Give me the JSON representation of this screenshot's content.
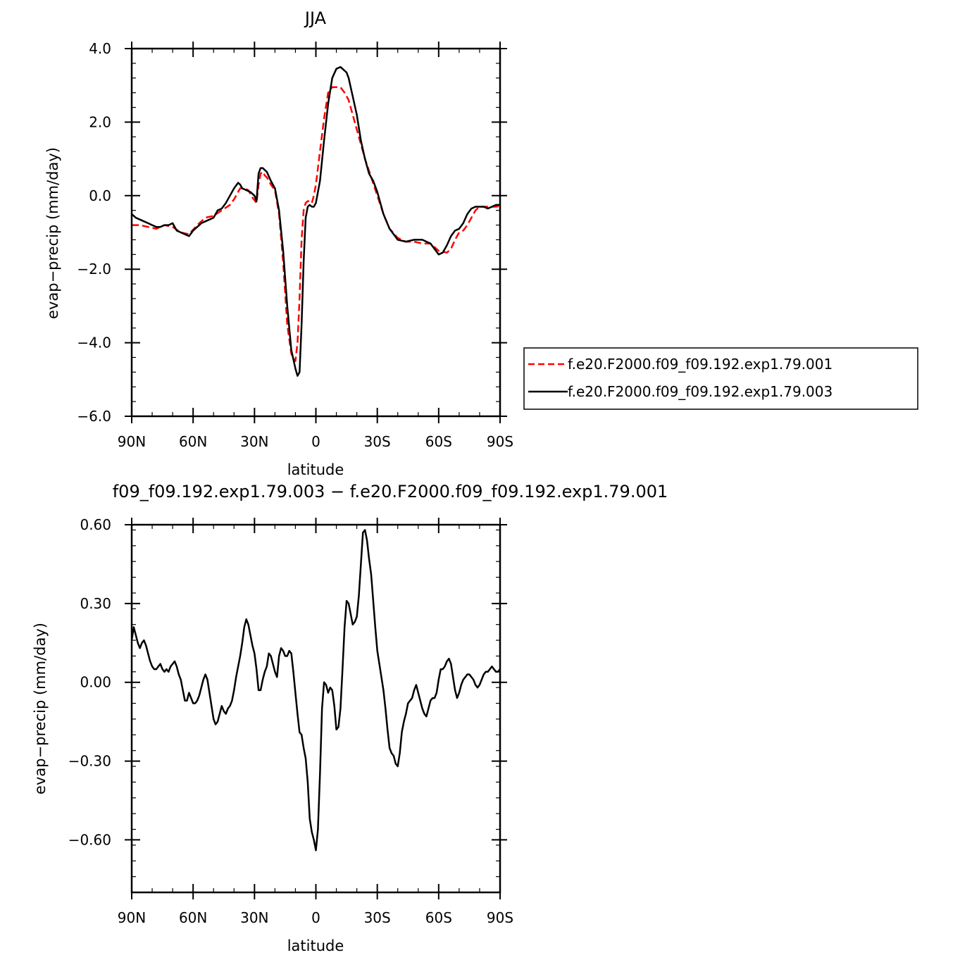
{
  "chart_data": [
    {
      "type": "line",
      "title": "JJA",
      "xlabel": "latitude",
      "ylabel": "evap−precip (mm/day)",
      "xlim": [
        90,
        -90
      ],
      "ylim": [
        -6,
        4
      ],
      "xticks": [
        90,
        60,
        30,
        0,
        -30,
        -60,
        -90
      ],
      "xtick_labels": [
        "90N",
        "60N",
        "30N",
        "0",
        "30S",
        "60S",
        "90S"
      ],
      "yticks": [
        -6,
        -4,
        -2,
        0,
        2,
        4
      ],
      "ytick_labels": [
        "−6.0",
        "−4.0",
        "−2.0",
        "0.0",
        "2.0",
        "4.0"
      ],
      "grid": false,
      "legend_position": "right",
      "series": [
        {
          "name": "f.e20.F2000.f09_f09.192.exp1.79.001",
          "color": "#ff0000",
          "style": "dashed",
          "x": [
            90,
            86,
            82,
            78,
            74,
            70,
            66,
            62,
            58,
            54,
            50,
            46,
            42,
            40,
            37,
            35,
            33,
            31,
            29,
            28,
            27,
            26,
            25,
            24,
            22,
            20,
            18,
            16,
            14,
            12,
            10,
            9,
            8,
            7,
            6,
            5,
            4,
            3,
            2,
            1,
            0,
            -2,
            -4,
            -6,
            -8,
            -10,
            -12,
            -14,
            -16,
            -18,
            -20,
            -22,
            -24,
            -27,
            -30,
            -33,
            -36,
            -40,
            -44,
            -48,
            -52,
            -56,
            -60,
            -64,
            -66,
            -68,
            -70,
            -72,
            -74,
            -76,
            -78,
            -80,
            -84,
            -88,
            -90
          ],
          "values": [
            -0.8,
            -0.8,
            -0.85,
            -0.9,
            -0.8,
            -0.85,
            -1.0,
            -1.05,
            -0.8,
            -0.6,
            -0.55,
            -0.4,
            -0.25,
            -0.1,
            0.2,
            0.2,
            0.15,
            -0.05,
            -0.2,
            0.3,
            0.6,
            0.65,
            0.55,
            0.5,
            0.3,
            0.15,
            -0.5,
            -1.8,
            -3.5,
            -4.3,
            -4.5,
            -4.0,
            -2.8,
            -1.2,
            -0.4,
            -0.2,
            -0.15,
            -0.15,
            -0.2,
            0.0,
            0.3,
            1.2,
            2.1,
            2.8,
            2.95,
            2.95,
            2.95,
            2.8,
            2.6,
            2.2,
            1.8,
            1.4,
            1.0,
            0.5,
            0.0,
            -0.5,
            -0.9,
            -1.15,
            -1.25,
            -1.25,
            -1.3,
            -1.3,
            -1.5,
            -1.55,
            -1.45,
            -1.2,
            -1.0,
            -0.95,
            -0.8,
            -0.6,
            -0.4,
            -0.3,
            -0.3,
            -0.3,
            -0.28
          ]
        },
        {
          "name": "f.e20.F2000.f09_f09.192.exp1.79.003",
          "color": "#000000",
          "style": "solid",
          "x": [
            90,
            88,
            86,
            84,
            82,
            80,
            78,
            76,
            74,
            72,
            70,
            68,
            66,
            64,
            62,
            60,
            58,
            56,
            54,
            52,
            50,
            48,
            46,
            44,
            42,
            40,
            38,
            37,
            36,
            34,
            32,
            30,
            29,
            28,
            27,
            26,
            25,
            24,
            22,
            20,
            18,
            16,
            14,
            12,
            10,
            9,
            8,
            7,
            6,
            5,
            4,
            3,
            2,
            1,
            0,
            -2,
            -4,
            -6,
            -8,
            -10,
            -12,
            -13,
            -14,
            -15,
            -16,
            -18,
            -20,
            -22,
            -24,
            -26,
            -28,
            -30,
            -33,
            -36,
            -40,
            -44,
            -48,
            -52,
            -56,
            -60,
            -62,
            -64,
            -66,
            -68,
            -70,
            -72,
            -74,
            -76,
            -78,
            -80,
            -82,
            -84,
            -86,
            -88,
            -90
          ],
          "values": [
            -0.5,
            -0.6,
            -0.65,
            -0.7,
            -0.75,
            -0.8,
            -0.85,
            -0.85,
            -0.8,
            -0.8,
            -0.75,
            -0.95,
            -1.0,
            -1.05,
            -1.1,
            -0.95,
            -0.85,
            -0.75,
            -0.7,
            -0.65,
            -0.6,
            -0.4,
            -0.35,
            -0.2,
            0.0,
            0.2,
            0.35,
            0.3,
            0.2,
            0.15,
            0.1,
            0.0,
            -0.15,
            0.6,
            0.75,
            0.75,
            0.7,
            0.65,
            0.4,
            0.2,
            -0.4,
            -1.5,
            -3.0,
            -4.2,
            -4.7,
            -4.9,
            -4.8,
            -3.5,
            -1.8,
            -0.6,
            -0.3,
            -0.25,
            -0.3,
            -0.3,
            -0.2,
            0.4,
            1.5,
            2.5,
            3.2,
            3.45,
            3.5,
            3.45,
            3.4,
            3.35,
            3.2,
            2.7,
            2.2,
            1.5,
            1.0,
            0.6,
            0.4,
            0.1,
            -0.5,
            -0.9,
            -1.2,
            -1.25,
            -1.2,
            -1.2,
            -1.3,
            -1.6,
            -1.55,
            -1.35,
            -1.1,
            -0.95,
            -0.9,
            -0.75,
            -0.5,
            -0.35,
            -0.3,
            -0.3,
            -0.3,
            -0.35,
            -0.3,
            -0.25,
            -0.25
          ]
        }
      ]
    },
    {
      "type": "line",
      "title": "f09_f09.192.exp1.79.003 − f.e20.F2000.f09_f09.192.exp1.79.001",
      "xlabel": "latitude",
      "ylabel": "evap−precip (mm/day)",
      "xlim": [
        90,
        -90
      ],
      "ylim": [
        -0.8,
        0.6
      ],
      "xticks": [
        90,
        60,
        30,
        0,
        -30,
        -60,
        -90
      ],
      "xtick_labels": [
        "90N",
        "60N",
        "30N",
        "0",
        "30S",
        "60S",
        "90S"
      ],
      "yticks": [
        -0.6,
        -0.3,
        0.0,
        0.3,
        0.6
      ],
      "ytick_labels": [
        "−0.60",
        "−0.30",
        "0.00",
        "0.30",
        "0.60"
      ],
      "grid": false,
      "series": [
        {
          "color": "#000000",
          "style": "solid",
          "x": [
            90,
            89,
            88,
            87,
            86,
            85,
            84,
            83,
            82,
            81,
            80,
            79,
            78,
            77,
            76,
            75,
            74,
            73,
            72,
            71,
            70,
            69,
            68,
            67,
            66,
            65,
            64,
            63,
            62,
            61,
            60,
            59,
            58,
            57,
            56,
            55,
            54,
            53,
            52,
            51,
            50,
            49,
            48,
            47,
            46,
            45,
            44,
            43,
            42,
            41,
            40,
            39,
            38,
            37,
            36,
            35,
            34,
            33,
            32,
            31,
            30,
            29,
            28,
            27,
            26,
            25,
            24,
            23,
            22,
            21,
            20,
            19,
            18,
            17,
            16,
            15,
            14,
            13,
            12,
            11,
            10,
            9,
            8,
            7,
            6,
            5,
            4,
            3,
            2,
            1,
            0,
            -1,
            -2,
            -3,
            -4,
            -5,
            -6,
            -7,
            -8,
            -9,
            -10,
            -11,
            -12,
            -13,
            -14,
            -15,
            -16,
            -17,
            -18,
            -19,
            -20,
            -21,
            -22,
            -23,
            -24,
            -25,
            -26,
            -27,
            -28,
            -29,
            -30,
            -31,
            -32,
            -33,
            -34,
            -35,
            -36,
            -37,
            -38,
            -39,
            -40,
            -41,
            -42,
            -43,
            -44,
            -45,
            -46,
            -47,
            -48,
            -49,
            -50,
            -51,
            -52,
            -53,
            -54,
            -55,
            -56,
            -57,
            -58,
            -59,
            -60,
            -61,
            -62,
            -63,
            -64,
            -65,
            -66,
            -67,
            -68,
            -69,
            -70,
            -71,
            -72,
            -73,
            -74,
            -75,
            -76,
            -77,
            -78,
            -79,
            -80,
            -81,
            -82,
            -83,
            -84,
            -85,
            -86,
            -87,
            -88,
            -89,
            -90
          ],
          "values": [
            0.16,
            0.21,
            0.18,
            0.15,
            0.13,
            0.15,
            0.16,
            0.14,
            0.11,
            0.08,
            0.06,
            0.05,
            0.05,
            0.06,
            0.07,
            0.05,
            0.04,
            0.05,
            0.04,
            0.06,
            0.07,
            0.08,
            0.06,
            0.03,
            0.01,
            -0.03,
            -0.07,
            -0.07,
            -0.04,
            -0.06,
            -0.08,
            -0.08,
            -0.07,
            -0.05,
            -0.02,
            0.01,
            0.03,
            0.01,
            -0.04,
            -0.09,
            -0.14,
            -0.16,
            -0.15,
            -0.12,
            -0.09,
            -0.11,
            -0.12,
            -0.1,
            -0.09,
            -0.07,
            -0.03,
            0.02,
            0.06,
            0.1,
            0.15,
            0.21,
            0.24,
            0.22,
            0.18,
            0.14,
            0.11,
            0.05,
            -0.03,
            -0.03,
            0.01,
            0.04,
            0.06,
            0.11,
            0.1,
            0.07,
            0.04,
            0.02,
            0.1,
            0.13,
            0.12,
            0.1,
            0.1,
            0.12,
            0.11,
            0.04,
            -0.04,
            -0.12,
            -0.19,
            -0.2,
            -0.25,
            -0.29,
            -0.38,
            -0.52,
            -0.57,
            -0.6,
            -0.64,
            -0.56,
            -0.35,
            -0.1,
            0.0,
            -0.01,
            -0.04,
            -0.02,
            -0.03,
            -0.09,
            -0.18,
            -0.17,
            -0.1,
            0.05,
            0.21,
            0.31,
            0.3,
            0.26,
            0.22,
            0.23,
            0.25,
            0.33,
            0.45,
            0.57,
            0.58,
            0.54,
            0.47,
            0.41,
            0.31,
            0.21,
            0.12,
            0.07,
            0.02,
            -0.03,
            -0.1,
            -0.18,
            -0.25,
            -0.27,
            -0.28,
            -0.31,
            -0.32,
            -0.27,
            -0.19,
            -0.15,
            -0.12,
            -0.08,
            -0.07,
            -0.06,
            -0.03,
            -0.01,
            -0.04,
            -0.07,
            -0.1,
            -0.12,
            -0.13,
            -0.1,
            -0.07,
            -0.06,
            -0.06,
            -0.04,
            0.01,
            0.05,
            0.05,
            0.06,
            0.08,
            0.09,
            0.07,
            0.02,
            -0.03,
            -0.06,
            -0.04,
            -0.01,
            0.01,
            0.02,
            0.03,
            0.03,
            0.02,
            0.01,
            -0.01,
            -0.02,
            -0.01,
            0.01,
            0.03,
            0.04,
            0.04,
            0.05,
            0.06,
            0.05,
            0.04,
            0.04,
            0.05
          ]
        }
      ]
    }
  ]
}
